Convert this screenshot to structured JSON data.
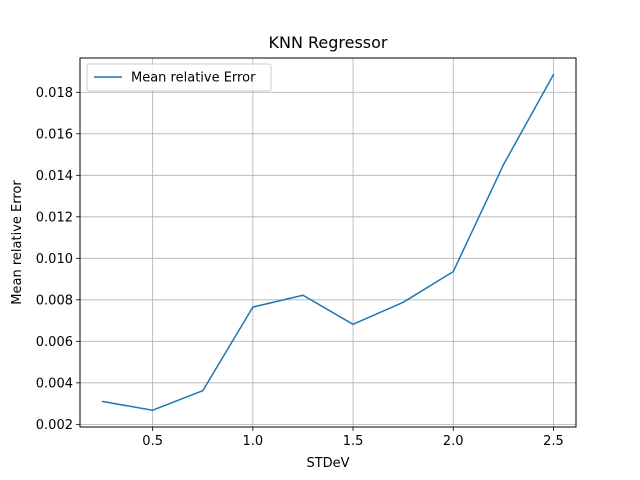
{
  "chart_data": {
    "type": "line",
    "title": "KNN Regressor",
    "xlabel": "STDeV",
    "ylabel": "Mean relative Error",
    "x": [
      0.25,
      0.5,
      0.75,
      1.0,
      1.25,
      1.5,
      1.75,
      2.0,
      2.25,
      2.5
    ],
    "series": [
      {
        "name": "Mean relative Error",
        "color": "#1f77b4",
        "values": [
          0.0031,
          0.00268,
          0.00362,
          0.00765,
          0.00822,
          0.00682,
          0.00788,
          0.00936,
          0.0145,
          0.01885
        ]
      }
    ],
    "xticks": [
      "0.5",
      "1.0",
      "1.5",
      "2.0",
      "2.5"
    ],
    "yticks": [
      "0.002",
      "0.004",
      "0.006",
      "0.008",
      "0.010",
      "0.012",
      "0.014",
      "0.016",
      "0.018"
    ],
    "xlim": [
      0.1375,
      2.6125
    ],
    "ylim": [
      0.001872,
      0.019652
    ],
    "grid": true,
    "legend_position": "top-left"
  }
}
